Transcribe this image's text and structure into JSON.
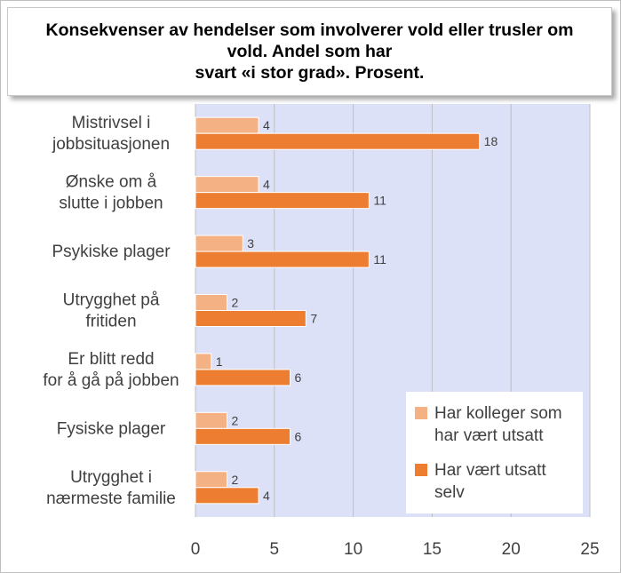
{
  "title": "Konsekvenser av hendelser som involverer vold eller trusler om vold. Andel som har\nsvart «i stor grad». Prosent.",
  "colors": {
    "plot_background": "#dde1f8",
    "gridline": "#bfbfbf",
    "colleagues": "#f4b183",
    "self": "#ed7d31"
  },
  "chart_data": {
    "type": "bar",
    "orientation": "horizontal",
    "title": "Konsekvenser av hendelser som involverer vold eller trusler om vold. Andel som har svart «i stor grad». Prosent.",
    "categories": [
      [
        "Mistrivsel i",
        "jobbsituasjonen"
      ],
      [
        "Ønske om å",
        "slutte i jobben"
      ],
      [
        "Psykiske plager"
      ],
      [
        "Utrygghet på",
        "fritiden"
      ],
      [
        "Er blitt redd",
        "for å gå på jobben"
      ],
      [
        "Fysiske plager"
      ],
      [
        "Utrygghet i",
        "nærmeste familie"
      ]
    ],
    "series": [
      {
        "name": "Har kolleger som har vært utsatt",
        "values": [
          4,
          4,
          3,
          2,
          1,
          2,
          2
        ]
      },
      {
        "name": "Har vært utsatt selv",
        "values": [
          18,
          11,
          11,
          7,
          6,
          6,
          4
        ]
      }
    ],
    "xlim": [
      0,
      25
    ],
    "ticks": [
      0,
      5,
      10,
      15,
      20,
      25
    ],
    "grid": true,
    "legend_position": "bottom-right"
  },
  "legend": {
    "items": [
      {
        "label": "Har kolleger som har vært utsatt",
        "color": "#f4b183"
      },
      {
        "label": "Har vært utsatt selv",
        "color": "#ed7d31"
      }
    ]
  }
}
